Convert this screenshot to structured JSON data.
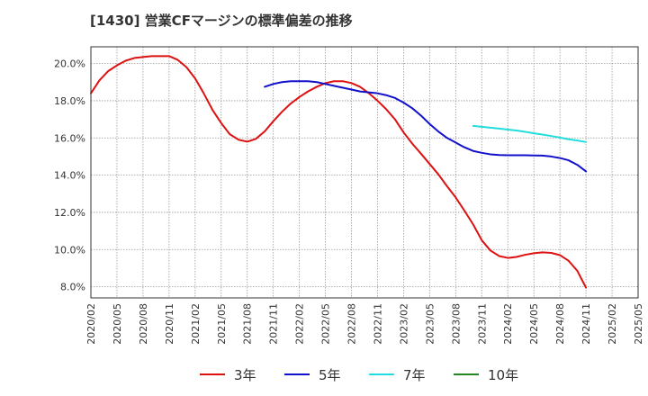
{
  "chart_data": {
    "type": "line",
    "title": "[1430]  営業CFマージンの標準偏差の推移",
    "x_tick_labels": [
      "2020/02",
      "2020/05",
      "2020/08",
      "2020/11",
      "2021/02",
      "2021/05",
      "2021/08",
      "2021/11",
      "2022/02",
      "2022/05",
      "2022/08",
      "2022/11",
      "2023/02",
      "2023/05",
      "2023/08",
      "2023/11",
      "2024/02",
      "2024/05",
      "2024/08",
      "2024/11",
      "2025/02",
      "2025/05"
    ],
    "y_tick_labels": [
      "8.0%",
      "10.0%",
      "12.0%",
      "14.0%",
      "16.0%",
      "18.0%",
      "20.0%"
    ],
    "y_ticks": [
      8,
      10,
      12,
      14,
      16,
      18,
      20
    ],
    "ylim": [
      7.4,
      20.9
    ],
    "x_range_index": [
      0,
      21
    ],
    "grid": true,
    "legend_position": "bottom",
    "series": [
      {
        "name": "3年",
        "color": "#dd1111",
        "points": [
          [
            0,
            18.4
          ],
          [
            0.33,
            19.1
          ],
          [
            0.67,
            19.6
          ],
          [
            1,
            19.9
          ],
          [
            1.33,
            20.15
          ],
          [
            1.67,
            20.3
          ],
          [
            2,
            20.35
          ],
          [
            2.33,
            20.4
          ],
          [
            2.67,
            20.4
          ],
          [
            3,
            20.4
          ],
          [
            3.33,
            20.2
          ],
          [
            3.67,
            19.8
          ],
          [
            4,
            19.2
          ],
          [
            4.33,
            18.4
          ],
          [
            4.67,
            17.5
          ],
          [
            5,
            16.8
          ],
          [
            5.33,
            16.2
          ],
          [
            5.67,
            15.9
          ],
          [
            6,
            15.8
          ],
          [
            6.33,
            15.95
          ],
          [
            6.67,
            16.35
          ],
          [
            7,
            16.9
          ],
          [
            7.33,
            17.4
          ],
          [
            7.67,
            17.85
          ],
          [
            8,
            18.2
          ],
          [
            8.33,
            18.5
          ],
          [
            8.67,
            18.75
          ],
          [
            9,
            18.95
          ],
          [
            9.33,
            19.05
          ],
          [
            9.67,
            19.05
          ],
          [
            10,
            18.95
          ],
          [
            10.33,
            18.75
          ],
          [
            10.67,
            18.4
          ],
          [
            11,
            18.0
          ],
          [
            11.33,
            17.55
          ],
          [
            11.67,
            17.0
          ],
          [
            12,
            16.3
          ],
          [
            12.33,
            15.7
          ],
          [
            12.67,
            15.15
          ],
          [
            13,
            14.6
          ],
          [
            13.33,
            14.05
          ],
          [
            13.67,
            13.4
          ],
          [
            14,
            12.8
          ],
          [
            14.33,
            12.1
          ],
          [
            14.67,
            11.35
          ],
          [
            15,
            10.5
          ],
          [
            15.33,
            9.95
          ],
          [
            15.67,
            9.65
          ],
          [
            16,
            9.55
          ],
          [
            16.33,
            9.6
          ],
          [
            16.67,
            9.72
          ],
          [
            17,
            9.8
          ],
          [
            17.33,
            9.85
          ],
          [
            17.67,
            9.82
          ],
          [
            18,
            9.7
          ],
          [
            18.33,
            9.4
          ],
          [
            18.67,
            8.85
          ],
          [
            19,
            7.95
          ]
        ]
      },
      {
        "name": "5年",
        "color": "#1111cc",
        "points": [
          [
            6.67,
            18.75
          ],
          [
            7,
            18.9
          ],
          [
            7.33,
            19.0
          ],
          [
            7.67,
            19.05
          ],
          [
            8,
            19.05
          ],
          [
            8.33,
            19.05
          ],
          [
            8.67,
            19.0
          ],
          [
            9,
            18.9
          ],
          [
            9.33,
            18.8
          ],
          [
            9.67,
            18.7
          ],
          [
            10,
            18.6
          ],
          [
            10.33,
            18.5
          ],
          [
            10.67,
            18.45
          ],
          [
            11,
            18.4
          ],
          [
            11.33,
            18.3
          ],
          [
            11.67,
            18.15
          ],
          [
            12,
            17.9
          ],
          [
            12.33,
            17.6
          ],
          [
            12.67,
            17.2
          ],
          [
            13,
            16.75
          ],
          [
            13.33,
            16.35
          ],
          [
            13.67,
            16.0
          ],
          [
            14,
            15.75
          ],
          [
            14.33,
            15.5
          ],
          [
            14.67,
            15.3
          ],
          [
            15,
            15.2
          ],
          [
            15.33,
            15.12
          ],
          [
            15.67,
            15.08
          ],
          [
            16,
            15.07
          ],
          [
            16.33,
            15.07
          ],
          [
            16.67,
            15.07
          ],
          [
            17,
            15.06
          ],
          [
            17.33,
            15.05
          ],
          [
            17.67,
            15.0
          ],
          [
            18,
            14.92
          ],
          [
            18.33,
            14.8
          ],
          [
            18.67,
            14.55
          ],
          [
            19,
            14.2
          ]
        ]
      },
      {
        "name": "7年",
        "color": "#22dddd",
        "points": [
          [
            14.67,
            16.65
          ],
          [
            15,
            16.6
          ],
          [
            15.33,
            16.55
          ],
          [
            15.67,
            16.5
          ],
          [
            16,
            16.45
          ],
          [
            16.33,
            16.4
          ],
          [
            16.67,
            16.33
          ],
          [
            17,
            16.25
          ],
          [
            17.33,
            16.18
          ],
          [
            17.67,
            16.1
          ],
          [
            18,
            16.02
          ],
          [
            18.33,
            15.93
          ],
          [
            18.67,
            15.86
          ],
          [
            19,
            15.78
          ]
        ]
      },
      {
        "name": "10年",
        "color": "#228822",
        "points": []
      }
    ]
  }
}
